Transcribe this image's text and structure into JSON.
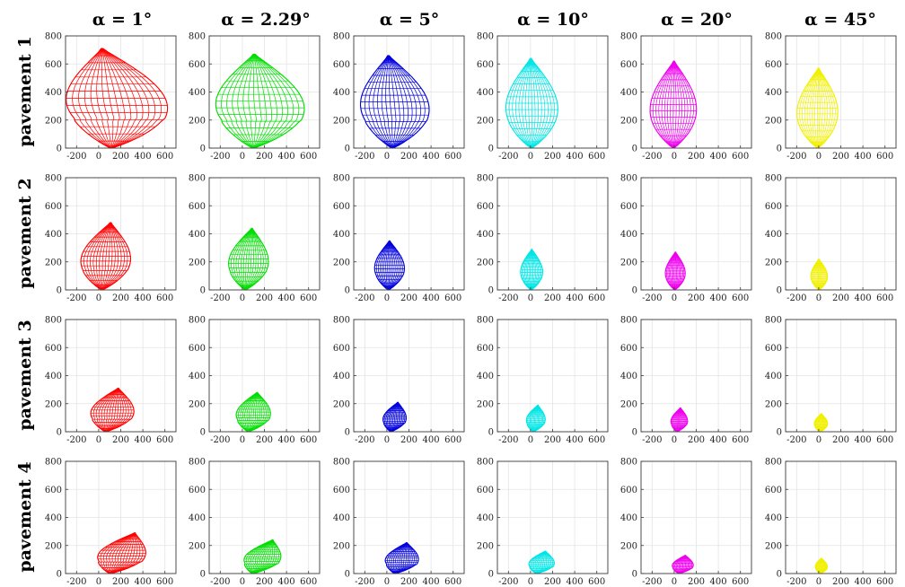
{
  "column_titles": [
    "α = 1°",
    "α = 2.29°",
    "α = 5°",
    "α = 10°",
    "α = 20°",
    "α = 45°"
  ],
  "row_labels": [
    "pavement 1",
    "pavement 2",
    "pavement 3",
    "pavement 4"
  ],
  "chart_data": {
    "type": "wireframe-grid",
    "xlim": [
      -300,
      700
    ],
    "ylim": [
      0,
      800
    ],
    "xticks": [
      -200,
      0,
      200,
      400,
      600
    ],
    "yticks": [
      0,
      200,
      400,
      600,
      800
    ],
    "xtick_labels": [
      "-200",
      "0",
      "200",
      "400",
      "600"
    ],
    "ytick_labels": [
      "0",
      "200",
      "400",
      "600",
      "800"
    ],
    "grid": true,
    "column_colors": [
      "#ff0000",
      "#00dd00",
      "#0000dd",
      "#00e5e5",
      "#ee00ee",
      "#f0f000"
    ],
    "panels": [
      [
        {
          "row": 0,
          "col": 0,
          "xmin": -250,
          "xmax": 660,
          "ymin": 0,
          "ymax": 710,
          "x_at_ymax": 0,
          "x_at_xmax_y": 360
        },
        {
          "row": 0,
          "col": 1,
          "xmin": -220,
          "xmax": 580,
          "ymin": 0,
          "ymax": 670,
          "x_at_ymax": 80,
          "x_at_xmax_y": 300
        },
        {
          "row": 0,
          "col": 2,
          "xmin": -220,
          "xmax": 400,
          "ymin": 0,
          "ymax": 660,
          "x_at_ymax": 0,
          "x_at_xmax_y": 260
        },
        {
          "row": 0,
          "col": 3,
          "xmin": -220,
          "xmax": 250,
          "ymin": 0,
          "ymax": 640,
          "x_at_ymax": 0,
          "x_at_xmax_y": 300
        },
        {
          "row": 0,
          "col": 4,
          "xmin": -220,
          "xmax": 200,
          "ymin": 0,
          "ymax": 620,
          "x_at_ymax": 0,
          "x_at_xmax_y": 300
        },
        {
          "row": 0,
          "col": 5,
          "xmin": -200,
          "xmax": 170,
          "ymin": 0,
          "ymax": 570,
          "x_at_ymax": 0,
          "x_at_xmax_y": 320
        }
      ],
      [
        {
          "row": 1,
          "col": 0,
          "xmin": -170,
          "xmax": 280,
          "ymin": 0,
          "ymax": 480,
          "x_at_ymax": 100,
          "x_at_xmax_y": 250
        },
        {
          "row": 1,
          "col": 1,
          "xmin": -130,
          "xmax": 230,
          "ymin": 0,
          "ymax": 440,
          "x_at_ymax": 80,
          "x_at_xmax_y": 230
        },
        {
          "row": 1,
          "col": 2,
          "xmin": -110,
          "xmax": 160,
          "ymin": 0,
          "ymax": 350,
          "x_at_ymax": 20,
          "x_at_xmax_y": 190
        },
        {
          "row": 1,
          "col": 3,
          "xmin": -90,
          "xmax": 110,
          "ymin": 0,
          "ymax": 290,
          "x_at_ymax": 10,
          "x_at_xmax_y": 150
        },
        {
          "row": 1,
          "col": 4,
          "xmin": -80,
          "xmax": 100,
          "ymin": 0,
          "ymax": 270,
          "x_at_ymax": 10,
          "x_at_xmax_y": 140
        },
        {
          "row": 1,
          "col": 5,
          "xmin": -70,
          "xmax": 80,
          "ymin": 0,
          "ymax": 220,
          "x_at_ymax": 0,
          "x_at_xmax_y": 120
        }
      ],
      [
        {
          "row": 2,
          "col": 0,
          "xmin": -80,
          "xmax": 310,
          "ymin": 0,
          "ymax": 310,
          "x_at_ymax": 160,
          "x_at_xmax_y": 200
        },
        {
          "row": 2,
          "col": 1,
          "xmin": -60,
          "xmax": 250,
          "ymin": 0,
          "ymax": 280,
          "x_at_ymax": 120,
          "x_at_xmax_y": 180
        },
        {
          "row": 2,
          "col": 2,
          "xmin": -40,
          "xmax": 170,
          "ymin": 0,
          "ymax": 210,
          "x_at_ymax": 90,
          "x_at_xmax_y": 130
        },
        {
          "row": 2,
          "col": 3,
          "xmin": -40,
          "xmax": 130,
          "ymin": 0,
          "ymax": 190,
          "x_at_ymax": 60,
          "x_at_xmax_y": 120
        },
        {
          "row": 2,
          "col": 4,
          "xmin": -30,
          "xmax": 120,
          "ymin": 0,
          "ymax": 170,
          "x_at_ymax": 50,
          "x_at_xmax_y": 110
        },
        {
          "row": 2,
          "col": 5,
          "xmin": -40,
          "xmax": 80,
          "ymin": 0,
          "ymax": 130,
          "x_at_ymax": 20,
          "x_at_xmax_y": 90
        }
      ],
      [
        {
          "row": 3,
          "col": 0,
          "xmin": -30,
          "xmax": 400,
          "ymin": 0,
          "ymax": 290,
          "x_at_ymax": 300,
          "x_at_xmax_y": 230
        },
        {
          "row": 3,
          "col": 1,
          "xmin": 0,
          "xmax": 330,
          "ymin": 0,
          "ymax": 240,
          "x_at_ymax": 250,
          "x_at_xmax_y": 200
        },
        {
          "row": 3,
          "col": 2,
          "xmin": -20,
          "xmax": 280,
          "ymin": 0,
          "ymax": 220,
          "x_at_ymax": 160,
          "x_at_xmax_y": 170
        },
        {
          "row": 3,
          "col": 3,
          "xmin": -20,
          "xmax": 210,
          "ymin": 0,
          "ymax": 160,
          "x_at_ymax": 120,
          "x_at_xmax_y": 110
        },
        {
          "row": 3,
          "col": 4,
          "xmin": -20,
          "xmax": 170,
          "ymin": 0,
          "ymax": 130,
          "x_at_ymax": 90,
          "x_at_xmax_y": 90
        },
        {
          "row": 3,
          "col": 5,
          "xmin": -30,
          "xmax": 80,
          "ymin": 0,
          "ymax": 110,
          "x_at_ymax": 20,
          "x_at_xmax_y": 80
        }
      ]
    ]
  }
}
